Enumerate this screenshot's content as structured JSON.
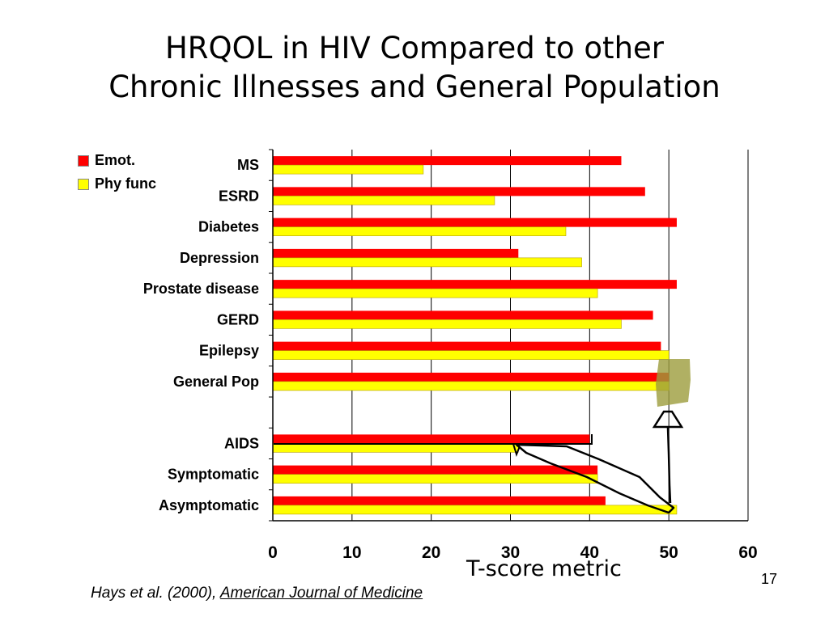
{
  "slide": {
    "title_line1": "HRQOL in HIV Compared to other",
    "title_line2": "Chronic Illnesses and General Population",
    "axis_caption": "T-score metric",
    "citation_prefix": "Hays et al. (2000), ",
    "citation_journal": "American Journal of Medicine",
    "slide_number": "17"
  },
  "colors": {
    "emot": "#ff0000",
    "phy": "#ffff00",
    "gridline": "#000000",
    "annotation_box": "#9c9c3c"
  },
  "chart_data": {
    "type": "bar",
    "orientation": "horizontal",
    "categories": [
      "MS",
      "ESRD",
      "Diabetes",
      "Depression",
      "Prostate disease",
      "GERD",
      "Epilepsy",
      "General Pop",
      "",
      "AIDS",
      "Symptomatic",
      "Asymptomatic"
    ],
    "series": [
      {
        "name": "Emot.",
        "values": [
          44,
          47,
          51,
          31,
          51,
          48,
          49,
          50,
          null,
          40,
          41,
          42
        ]
      },
      {
        "name": "Phy func",
        "values": [
          19,
          28,
          37,
          39,
          41,
          44,
          50,
          50,
          null,
          31,
          41,
          51
        ]
      }
    ],
    "xlim": [
      0,
      60
    ],
    "xticks": [
      0,
      10,
      20,
      30,
      40,
      50,
      60
    ],
    "grid": true,
    "legend_position": "top-left"
  }
}
